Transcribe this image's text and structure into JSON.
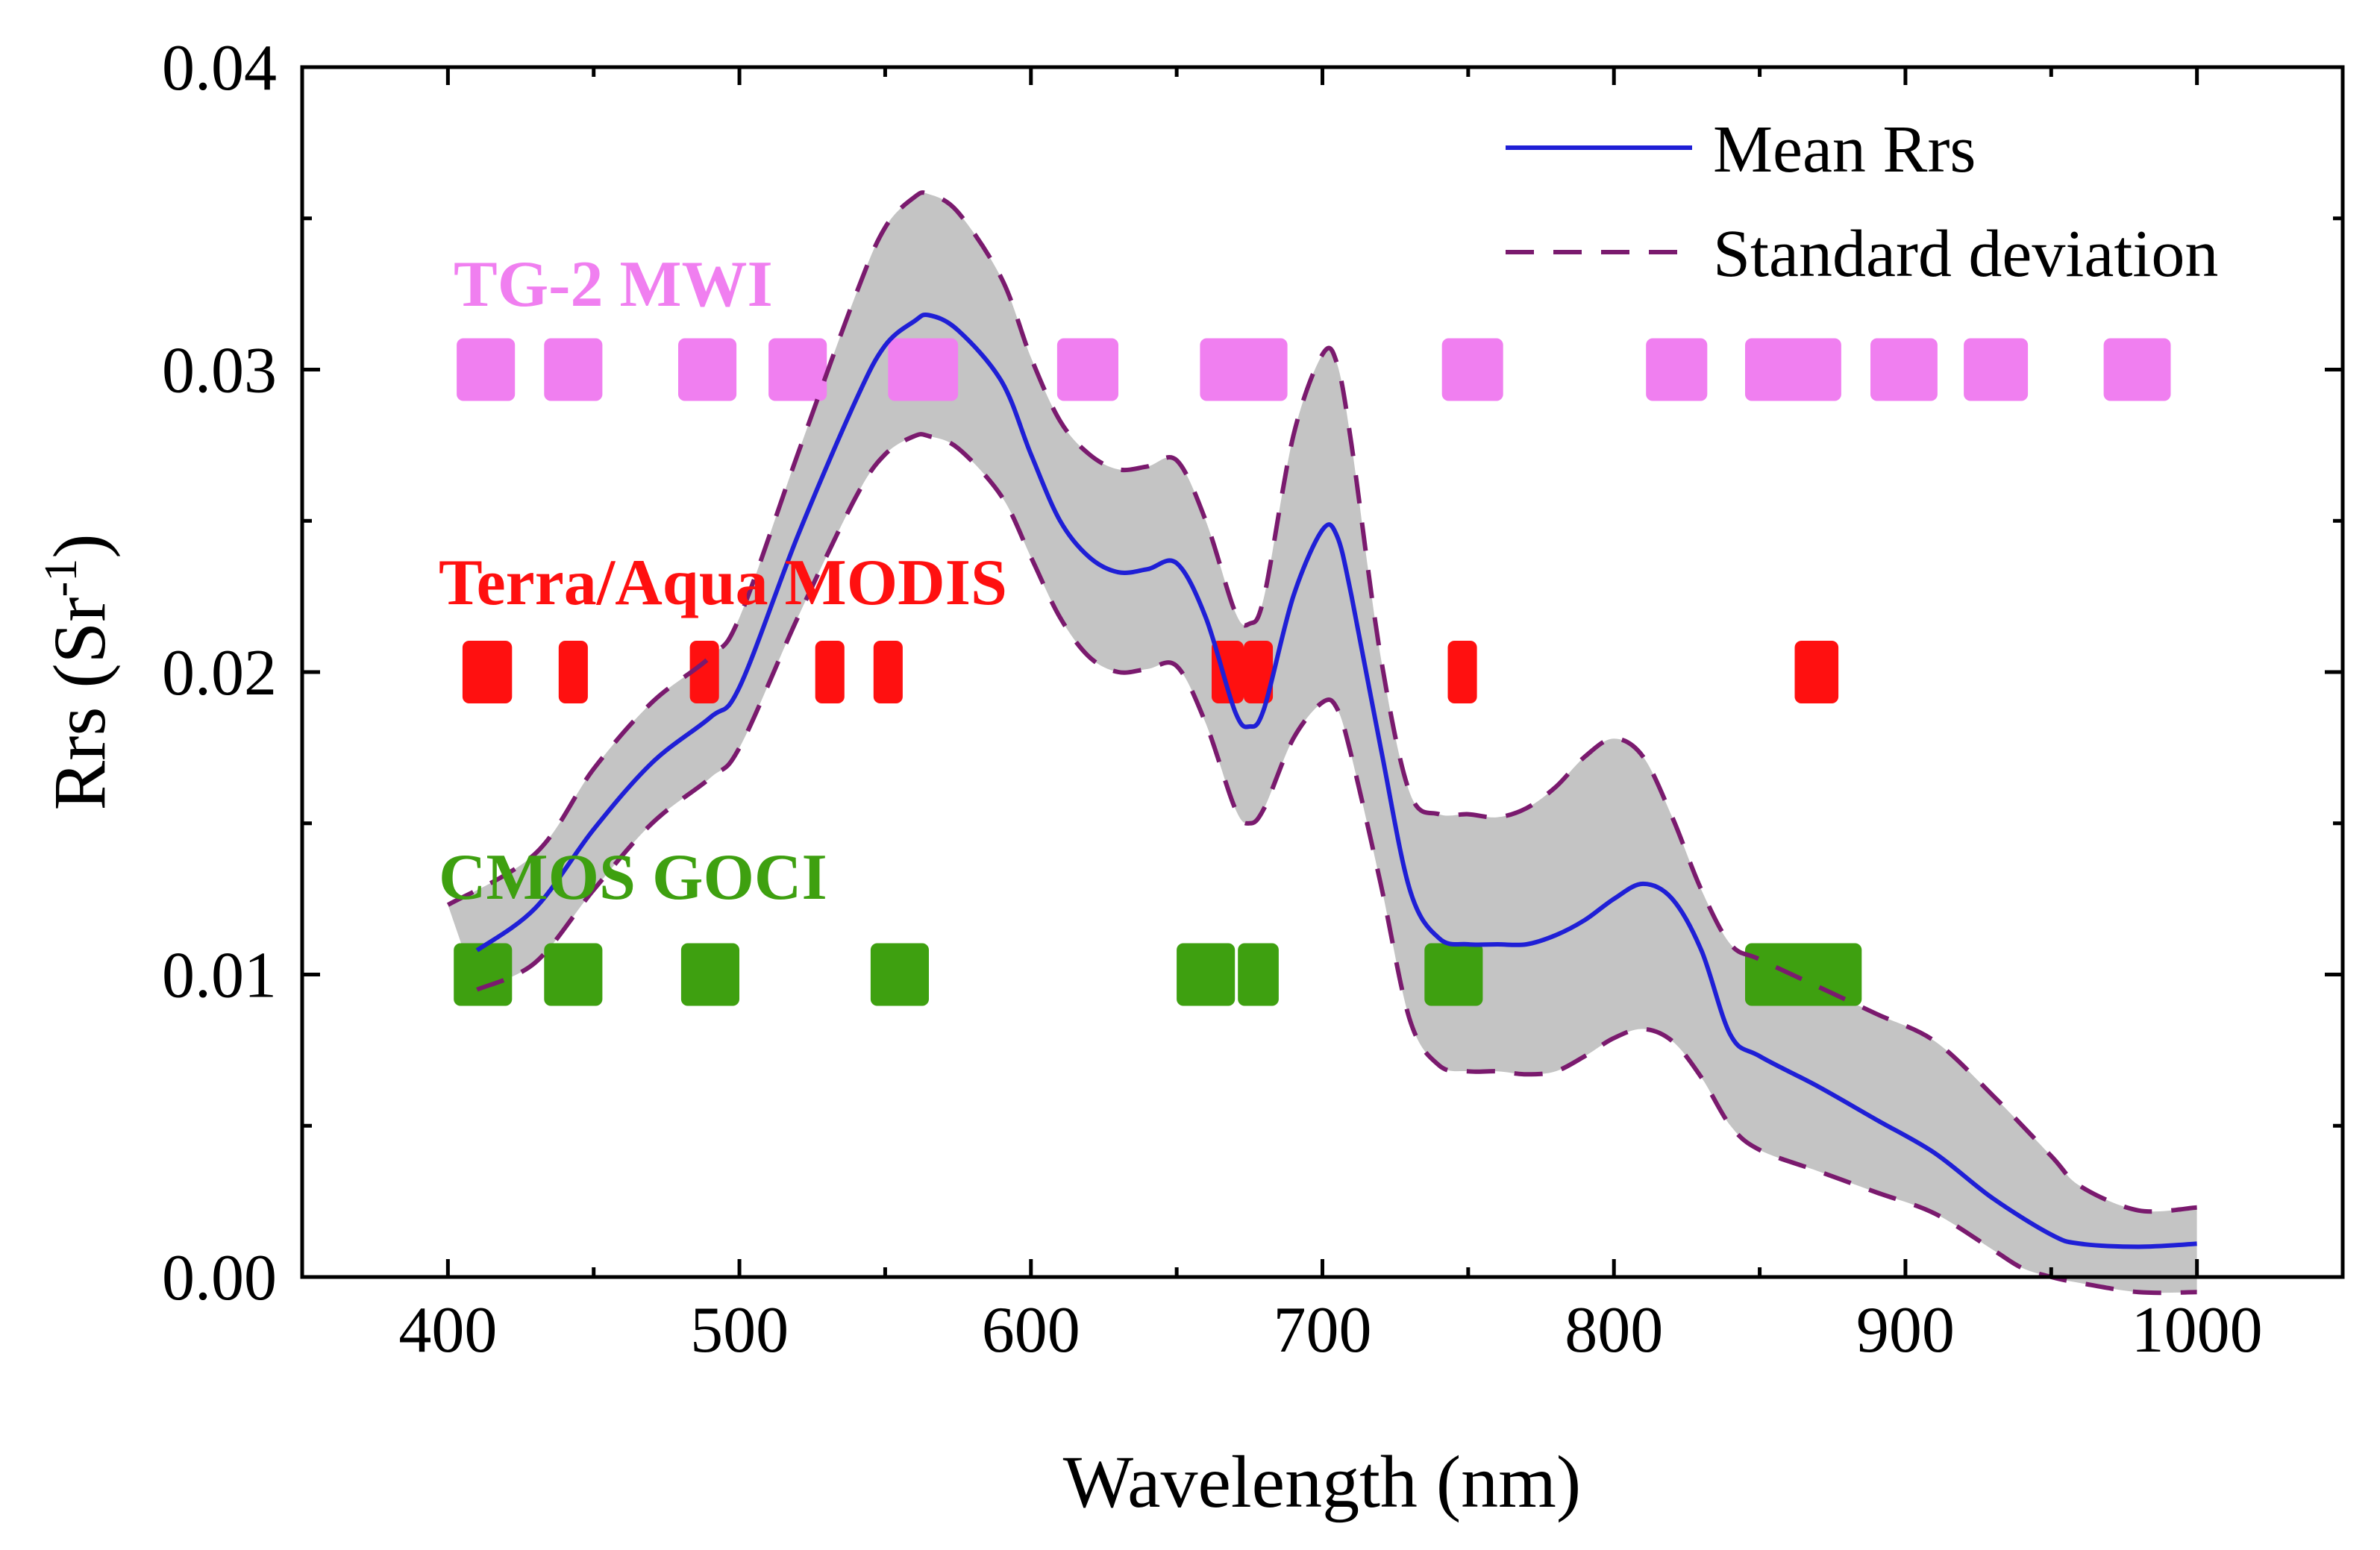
{
  "chart_data": {
    "type": "line",
    "title": "",
    "xlabel": "Wavelength (nm)",
    "ylabel_main": "Rrs (Sr",
    "ylabel_sup": "-1",
    "ylabel_close": ")",
    "xlim": [
      350,
      1050
    ],
    "ylim": [
      0,
      0.04
    ],
    "xticks": [
      400,
      500,
      600,
      700,
      800,
      900,
      1000
    ],
    "xtick_labels": [
      "400",
      "500",
      "600",
      "700",
      "800",
      "900",
      "1000"
    ],
    "yticks": [
      0,
      0.01,
      0.02,
      0.03,
      0.04
    ],
    "ytick_labels": [
      "0.00",
      "0.01",
      "0.02",
      "0.03",
      "0.04"
    ],
    "legend": {
      "position": "top-right",
      "entries": [
        "Mean Rrs",
        "Standard deviation"
      ]
    },
    "colors": {
      "mean": "#1f1fd6",
      "std": "#7a1a6e",
      "band_fill": "#c4c4c4",
      "tg2": "#f07ff0",
      "modis": "#ff1010",
      "goci": "#3ea010"
    },
    "mean": {
      "x": [
        410,
        430,
        450,
        470,
        490,
        500,
        520,
        540,
        550,
        560,
        565,
        575,
        590,
        600,
        610,
        620,
        630,
        640,
        650,
        660,
        670,
        675,
        680,
        690,
        700,
        705,
        710,
        720,
        730,
        740,
        750,
        760,
        770,
        780,
        790,
        800,
        810,
        820,
        830,
        840,
        850,
        870,
        890,
        910,
        930,
        950,
        960,
        980,
        1000
      ],
      "y": [
        0.0108,
        0.0122,
        0.0148,
        0.017,
        0.0185,
        0.0195,
        0.0245,
        0.029,
        0.0308,
        0.0316,
        0.0318,
        0.0313,
        0.0296,
        0.0272,
        0.025,
        0.0238,
        0.0233,
        0.0234,
        0.0236,
        0.0218,
        0.0187,
        0.0182,
        0.0188,
        0.0225,
        0.0247,
        0.0245,
        0.0225,
        0.0175,
        0.0128,
        0.0112,
        0.011,
        0.011,
        0.011,
        0.0113,
        0.0118,
        0.0125,
        0.013,
        0.0125,
        0.0108,
        0.008,
        0.0073,
        0.0063,
        0.0052,
        0.0041,
        0.0026,
        0.0014,
        0.0011,
        0.001,
        0.0011
      ]
    },
    "upper_std": {
      "x": [
        400,
        430,
        450,
        470,
        490,
        500,
        520,
        540,
        550,
        560,
        565,
        575,
        590,
        600,
        610,
        620,
        630,
        640,
        650,
        660,
        670,
        675,
        680,
        690,
        700,
        705,
        710,
        720,
        730,
        740,
        750,
        760,
        770,
        780,
        790,
        800,
        810,
        820,
        830,
        840,
        850,
        870,
        890,
        910,
        930,
        950,
        960,
        980,
        1000
      ],
      "y": [
        0.0123,
        0.014,
        0.0168,
        0.019,
        0.0205,
        0.0218,
        0.0272,
        0.0325,
        0.0347,
        0.0357,
        0.0358,
        0.0352,
        0.033,
        0.0304,
        0.0283,
        0.0272,
        0.0267,
        0.0268,
        0.027,
        0.025,
        0.022,
        0.0216,
        0.0225,
        0.0278,
        0.0305,
        0.0302,
        0.0275,
        0.0205,
        0.016,
        0.0153,
        0.0153,
        0.0152,
        0.0155,
        0.0162,
        0.0172,
        0.0178,
        0.0172,
        0.0152,
        0.0128,
        0.011,
        0.0105,
        0.0096,
        0.0087,
        0.0078,
        0.006,
        0.004,
        0.003,
        0.0022,
        0.0023
      ]
    },
    "lower_std": {
      "x": [
        410,
        430,
        450,
        470,
        490,
        500,
        520,
        540,
        550,
        560,
        565,
        575,
        590,
        600,
        610,
        620,
        630,
        640,
        650,
        660,
        670,
        675,
        680,
        690,
        700,
        705,
        710,
        720,
        730,
        740,
        750,
        760,
        770,
        780,
        790,
        800,
        810,
        820,
        830,
        840,
        850,
        870,
        890,
        910,
        930,
        940,
        950,
        960,
        980,
        1000
      ],
      "y": [
        0.0095,
        0.0104,
        0.0128,
        0.015,
        0.0165,
        0.0175,
        0.0218,
        0.0258,
        0.0272,
        0.0278,
        0.0278,
        0.0274,
        0.0258,
        0.0238,
        0.0218,
        0.0205,
        0.02,
        0.0201,
        0.0202,
        0.0183,
        0.0155,
        0.015,
        0.0155,
        0.0178,
        0.019,
        0.0188,
        0.0172,
        0.013,
        0.0085,
        0.007,
        0.0068,
        0.0068,
        0.0067,
        0.0068,
        0.0073,
        0.0079,
        0.0082,
        0.0078,
        0.0066,
        0.005,
        0.0042,
        0.0035,
        0.0028,
        0.0021,
        0.0009,
        0.0003,
        0.0,
        -0.0002,
        -0.0005,
        -0.0005
      ]
    },
    "sensors": [
      {
        "name": "TG-2 MWI",
        "color": "#f07ff0",
        "y": 0.03,
        "bands": [
          [
            403,
            423
          ],
          [
            433,
            453
          ],
          [
            479,
            499
          ],
          [
            510,
            530
          ],
          [
            551,
            575
          ],
          [
            609,
            630
          ],
          [
            658,
            688
          ],
          [
            741,
            762
          ],
          [
            811,
            832
          ],
          [
            845,
            878
          ],
          [
            888,
            911
          ],
          [
            920,
            942
          ],
          [
            968,
            991
          ]
        ]
      },
      {
        "name": "Terra/Aqua MODIS",
        "color": "#ff1010",
        "y": 0.02,
        "bands": [
          [
            405,
            422
          ],
          [
            438,
            448
          ],
          [
            483,
            493
          ],
          [
            526,
            536
          ],
          [
            546,
            556
          ],
          [
            662,
            673
          ],
          [
            673,
            683
          ],
          [
            743,
            753
          ],
          [
            862,
            877
          ]
        ]
      },
      {
        "name": "CMOS GOCI",
        "color": "#3ea010",
        "y": 0.01,
        "bands": [
          [
            402,
            422
          ],
          [
            433,
            453
          ],
          [
            480,
            500
          ],
          [
            545,
            565
          ],
          [
            650,
            670
          ],
          [
            671,
            685
          ],
          [
            735,
            755
          ],
          [
            845,
            885
          ]
        ]
      }
    ]
  }
}
